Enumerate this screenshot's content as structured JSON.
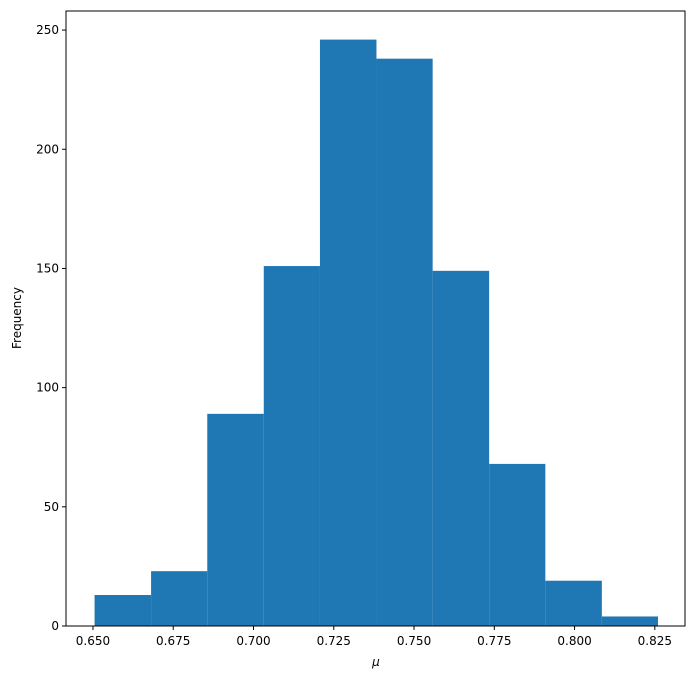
{
  "chart_data": {
    "type": "histogram",
    "x_label": "μ",
    "y_label": "Frequency",
    "bins": [
      0.6505,
      0.6681,
      0.6856,
      0.7032,
      0.7207,
      0.7383,
      0.7558,
      0.7734,
      0.7909,
      0.8085,
      0.826
    ],
    "values": [
      13,
      23,
      89,
      151,
      246,
      238,
      149,
      68,
      19,
      4
    ],
    "color": "#1f77b4",
    "xlim": [
      0.6416,
      0.8344
    ],
    "ylim": [
      0,
      258
    ],
    "xticks": [
      {
        "value": 0.65,
        "label": "0.650"
      },
      {
        "value": 0.675,
        "label": "0.675"
      },
      {
        "value": 0.7,
        "label": "0.700"
      },
      {
        "value": 0.725,
        "label": "0.725"
      },
      {
        "value": 0.75,
        "label": "0.750"
      },
      {
        "value": 0.775,
        "label": "0.775"
      },
      {
        "value": 0.8,
        "label": "0.800"
      },
      {
        "value": 0.825,
        "label": "0.825"
      }
    ],
    "yticks": [
      0,
      50,
      100,
      150,
      200,
      250
    ]
  }
}
